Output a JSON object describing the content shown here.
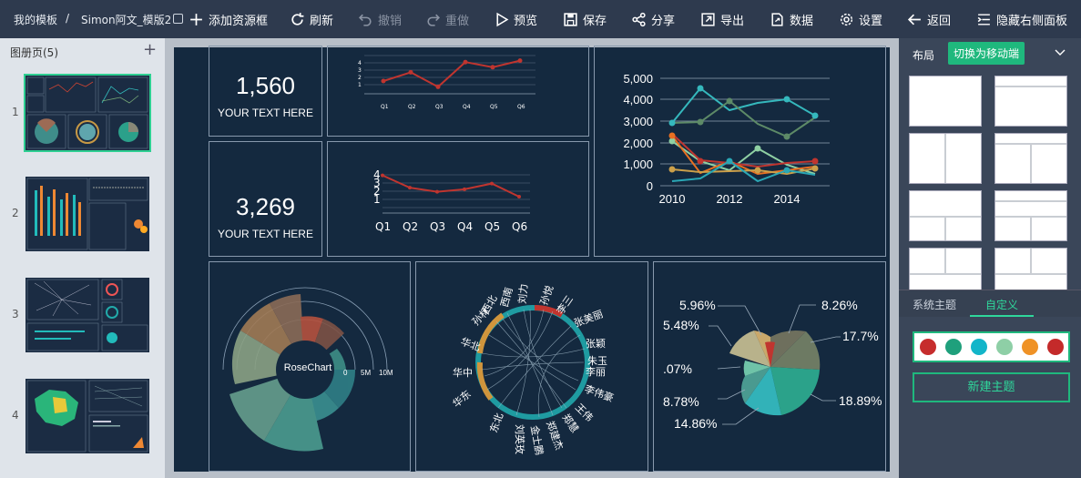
{
  "breadcrumb": {
    "home": "我的模板",
    "sep": "/",
    "file": "Simon阿文_模版2"
  },
  "toolbar": {
    "add": "添加资源框",
    "refresh": "刷新",
    "undo": "撤销",
    "redo": "重做",
    "preview": "预览",
    "save": "保存",
    "share": "分享",
    "export": "导出",
    "data": "数据",
    "settings": "设置",
    "back": "返回",
    "hide_panel": "隐藏右侧面板"
  },
  "pages_panel": {
    "title": "图册页(5)",
    "add_icon": "+",
    "pages": [
      "1",
      "2",
      "3",
      "4"
    ]
  },
  "kpis": [
    {
      "value": "1,560",
      "label": "YOUR TEXT HERE"
    },
    {
      "value": "3,269",
      "label": "YOUR TEXT HERE"
    }
  ],
  "mini_line_1": {
    "categories": [
      "Q1",
      "Q2",
      "Q3",
      "Q4",
      "Q5",
      "Q6"
    ],
    "values": [
      1.5,
      2.7,
      0.7,
      4.1,
      3.4,
      4.3
    ],
    "yticks": [
      "1",
      "2",
      "3",
      "4"
    ]
  },
  "mini_line_2": {
    "categories": [
      "Q1",
      "Q2",
      "Q3",
      "Q4",
      "Q5",
      "Q6"
    ],
    "values": [
      4.6,
      3.1,
      2.6,
      2.9,
      3.6,
      2.0
    ],
    "yticks": [
      "1",
      "2",
      "3",
      "4"
    ]
  },
  "multi_line": {
    "yticks": [
      "0",
      "1,000",
      "2,000",
      "3,000",
      "4,000",
      "5,000"
    ],
    "xticks": [
      "2010",
      "2012",
      "2014"
    ]
  },
  "rose": {
    "center_label": "RoseChart",
    "scale": [
      "0",
      "5M",
      "10M"
    ]
  },
  "chord": {
    "labels": [
      "华东",
      "华中",
      "华北",
      "东北",
      "西北",
      "西南",
      "刘力",
      "孙悦",
      "李三",
      "张美丽",
      "张颖",
      "朱玉",
      "李丽",
      "李伟豪",
      "王伟",
      "郑慧",
      "郑建杰",
      "金士鹏",
      "刘英玫",
      "孙林"
    ]
  },
  "pie": {
    "labels": [
      "8.26%",
      "17.7%",
      "18.89%",
      "14.86%",
      "8.78%",
      ".07%",
      "5.48%",
      "5.96%"
    ]
  },
  "right_panel": {
    "tab_layout": "布局",
    "mobile_button": "切换为移动端",
    "theme_tabs": [
      "系统主题",
      "自定义"
    ],
    "theme_colors": [
      "#c62d2d",
      "#1fa07c",
      "#12b5c9",
      "#8ecfa6",
      "#ef9226",
      "#c42a2a"
    ],
    "new_theme": "新建主题"
  }
}
